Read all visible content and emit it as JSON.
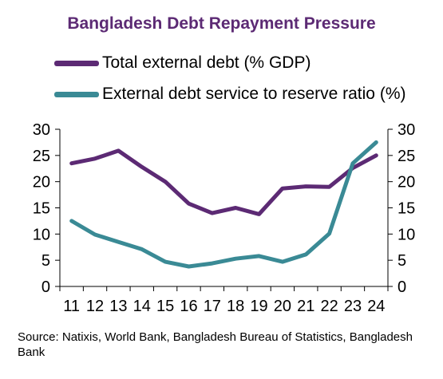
{
  "chart_data": {
    "type": "line",
    "title": "Bangladesh Debt Repayment Pressure",
    "x": [
      "11",
      "12",
      "13",
      "14",
      "15",
      "16",
      "17",
      "18",
      "19",
      "20",
      "21",
      "22",
      "23",
      "24"
    ],
    "ylim": [
      0,
      30
    ],
    "yticks": [
      0,
      5,
      10,
      15,
      20,
      25,
      30
    ],
    "y2lim": [
      0,
      30
    ],
    "y2ticks": [
      0,
      5,
      10,
      15,
      20,
      25,
      30
    ],
    "grid": false,
    "legend_position": "top",
    "series": [
      {
        "name": "Total external debt (% GDP)",
        "color": "#5c2a74",
        "values": [
          23.5,
          24.4,
          25.9,
          22.8,
          20.0,
          15.8,
          14.0,
          15.0,
          13.8,
          18.7,
          19.1,
          19.0,
          22.6,
          25.0
        ]
      },
      {
        "name": "External debt service to reserve ratio (%)",
        "color": "#3a8a95",
        "values": [
          12.5,
          9.9,
          8.5,
          7.1,
          4.7,
          3.8,
          4.4,
          5.3,
          5.8,
          4.7,
          6.1,
          10.1,
          23.5,
          27.5
        ]
      }
    ]
  },
  "source": "Source: Natixis, World Bank, Bangladesh Bureau of Statistics, Bangladesh Bank",
  "colors": {
    "title": "#5c2a74",
    "axis": "#000000"
  }
}
